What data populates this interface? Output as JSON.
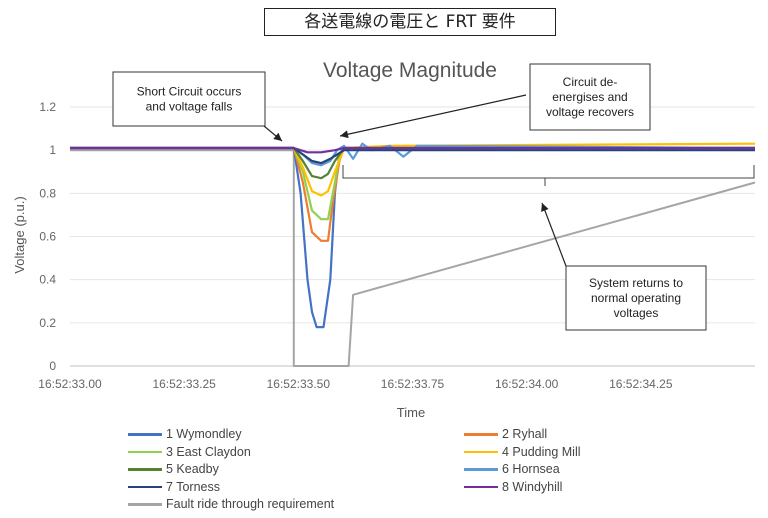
{
  "header": {
    "jp_title": "各送電線の電圧と FRT 要件"
  },
  "chart_data": {
    "type": "line",
    "title": "Voltage Magnitude",
    "xlabel": "Time",
    "ylabel": "Voltage (p.u.)",
    "xlim": [
      "16:52:33.00",
      "16:52:34.50"
    ],
    "ylim": [
      0,
      1.2
    ],
    "x_ticks": [
      "16:52:33.00",
      "16:52:33.25",
      "16:52:33.50",
      "16:52:33.75",
      "16:52:34.00",
      "16:52:34.25"
    ],
    "y_ticks": [
      "0",
      "0.2",
      "0.4",
      "0.6",
      "0.8",
      "1",
      "1.2"
    ],
    "grid": "horizontal",
    "legend_position": "bottom",
    "x_unit_note": "x values in seconds after 16:52:33.00",
    "series": [
      {
        "name": "1 Wymondley",
        "color": "#4472c4",
        "x": [
          0,
          0.49,
          0.505,
          0.52,
          0.53,
          0.54,
          0.555,
          0.57,
          0.58,
          0.59,
          0.6,
          1.5
        ],
        "y": [
          1.01,
          1.01,
          0.8,
          0.4,
          0.25,
          0.18,
          0.18,
          0.4,
          0.8,
          0.98,
          1.01,
          1.01
        ]
      },
      {
        "name": "2 Ryhall",
        "color": "#ed7d31",
        "x": [
          0,
          0.49,
          0.51,
          0.53,
          0.55,
          0.565,
          0.575,
          0.59,
          0.6,
          1.5
        ],
        "y": [
          1.01,
          1.01,
          0.85,
          0.62,
          0.58,
          0.58,
          0.75,
          0.95,
          1.01,
          1.01
        ]
      },
      {
        "name": "3 East Claydon",
        "color": "#92d050",
        "x": [
          0,
          0.49,
          0.51,
          0.53,
          0.55,
          0.565,
          0.58,
          0.59,
          0.6,
          1.5
        ],
        "y": [
          1.01,
          1.01,
          0.9,
          0.72,
          0.68,
          0.68,
          0.85,
          0.97,
          1.01,
          1.01
        ]
      },
      {
        "name": "4 Pudding Mill",
        "color": "#ffc000",
        "x": [
          0,
          0.49,
          0.51,
          0.53,
          0.55,
          0.565,
          0.58,
          0.6,
          0.7,
          1.5
        ],
        "y": [
          1.01,
          1.01,
          0.92,
          0.81,
          0.79,
          0.81,
          0.9,
          1.01,
          1.02,
          1.03
        ]
      },
      {
        "name": "5 Keadby",
        "color": "#548235",
        "x": [
          0,
          0.49,
          0.51,
          0.53,
          0.55,
          0.565,
          0.58,
          0.6,
          1.5
        ],
        "y": [
          1.01,
          1.01,
          0.95,
          0.88,
          0.87,
          0.89,
          0.95,
          1.01,
          1.01
        ]
      },
      {
        "name": "6 Hornsea",
        "color": "#5b9bd5",
        "x": [
          0,
          0.49,
          0.51,
          0.53,
          0.55,
          0.57,
          0.585,
          0.6,
          0.62,
          0.64,
          0.66,
          0.7,
          0.73,
          0.76,
          1.5
        ],
        "y": [
          1.01,
          1.01,
          0.98,
          0.94,
          0.93,
          0.95,
          1.0,
          1.02,
          0.96,
          1.03,
          1.0,
          1.02,
          0.97,
          1.02,
          1.01
        ]
      },
      {
        "name": "7 Torness",
        "color": "#264478",
        "x": [
          0,
          0.49,
          0.51,
          0.53,
          0.55,
          0.57,
          0.6,
          1.5
        ],
        "y": [
          1.01,
          1.01,
          0.98,
          0.95,
          0.94,
          0.96,
          1.0,
          1.0
        ]
      },
      {
        "name": "8 Windyhill",
        "color": "#7030a0",
        "x": [
          0,
          0.49,
          0.52,
          0.55,
          0.58,
          0.6,
          1.5
        ],
        "y": [
          1.01,
          1.01,
          0.99,
          0.99,
          1.0,
          1.01,
          1.01
        ]
      },
      {
        "name": "Fault ride through requirement",
        "color": "#a5a5a5",
        "x": [
          0,
          0.49,
          0.49,
          0.61,
          0.62,
          1.5
        ],
        "y": [
          1.0,
          1.0,
          0.0,
          0.0,
          0.33,
          0.85
        ]
      }
    ],
    "annotations": [
      {
        "text": "Short Circuit occurs\nand voltage  falls"
      },
      {
        "text": "Circuit de-\nenergises and\nvoltage recovers"
      },
      {
        "text": "System returns to\nnormal operating\nvoltages"
      }
    ]
  }
}
